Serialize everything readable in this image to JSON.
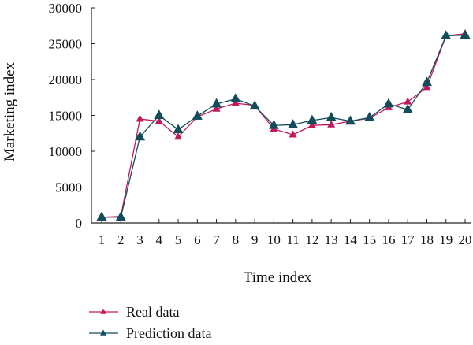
{
  "chart_data": {
    "type": "line",
    "xlabel": "Time index",
    "ylabel": "Marketing index",
    "x": [
      1,
      2,
      3,
      4,
      5,
      6,
      7,
      8,
      9,
      10,
      11,
      12,
      13,
      14,
      15,
      16,
      17,
      18,
      19,
      20
    ],
    "ylim": [
      0,
      30000
    ],
    "yticks": [
      0,
      5000,
      10000,
      15000,
      20000,
      25000,
      30000
    ],
    "grid": false,
    "legend_position": "bottom-left",
    "series": [
      {
        "name": "Real data",
        "color": "#c2185b",
        "marker": "triangle",
        "values": [
          800,
          900,
          14500,
          14200,
          12000,
          14800,
          15900,
          16700,
          16400,
          13100,
          12300,
          13600,
          13700,
          14200,
          14600,
          16100,
          16900,
          18900,
          26100,
          26400
        ]
      },
      {
        "name": "Prediction data",
        "color": "#124c5a",
        "marker": "triangle",
        "values": [
          800,
          800,
          12000,
          15000,
          13000,
          14900,
          16600,
          17300,
          16300,
          13600,
          13700,
          14300,
          14700,
          14200,
          14700,
          16600,
          15800,
          19600,
          26100,
          26200
        ]
      }
    ]
  }
}
